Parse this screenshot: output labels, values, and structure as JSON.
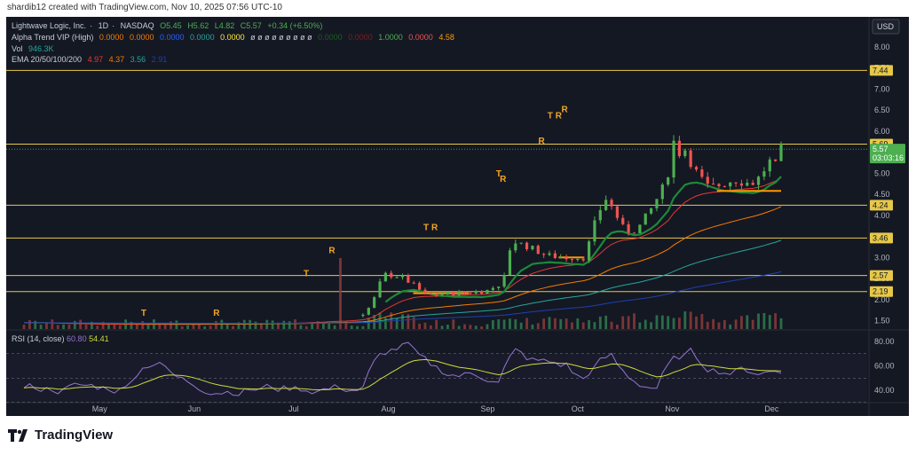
{
  "caption": "shardib12 created with TradingView.com, Nov 10, 2025 07:56 UTC-10",
  "symbol": {
    "name": "Lightwave Logic, Inc.",
    "interval": "1D",
    "exchange": "NASDAQ",
    "open": "O5.45",
    "high": "H5.62",
    "low": "L4.82",
    "close": "C5.57",
    "change": "+0.34 (+6.50%)"
  },
  "indicators": {
    "alpha_trend": {
      "label": "Alpha Trend VIP (High)",
      "values": [
        "0.0000",
        "0.0000",
        "0.0000",
        "0.0000",
        "0.0000",
        "ø ø ø ø ø ø ø ø ø",
        "0.0000",
        "0.0000",
        "1.0000",
        "0.0000",
        "4.58"
      ]
    },
    "vol": {
      "label": "Vol",
      "value": "946.3K"
    },
    "ema": {
      "label": "EMA 20/50/100/200",
      "values": [
        "4.97",
        "4.37",
        "3.56",
        "2.91"
      ]
    },
    "rsi": {
      "label": "RSI (14, close)",
      "values": [
        "60.80",
        "54.41"
      ]
    }
  },
  "currency": "USD",
  "price_tag": {
    "price": "5.57",
    "countdown": "03:03:16"
  },
  "brand": "TradingView",
  "colors": {
    "background": "#141823",
    "bull": "#4caf50",
    "bear": "#ef5350",
    "ema20": "#e53935",
    "ema50": "#f57c00",
    "ema100": "#26a69a",
    "ema200": "#1e40af",
    "level": "#e6c84a",
    "rsi": "#9575cd",
    "rsi_ma": "#cddc39"
  },
  "chart_data": {
    "type": "candlestick",
    "x_labels": [
      "May",
      "Jun",
      "Jul",
      "Aug",
      "Sep",
      "Oct",
      "Nov",
      "Dec"
    ],
    "y_ticks": [
      1.5,
      2.0,
      2.5,
      3.0,
      3.5,
      4.0,
      4.5,
      5.0,
      5.5,
      6.0,
      6.5,
      7.0,
      7.5,
      8.0
    ],
    "ylim": [
      1.3,
      8.5
    ],
    "horizontal_levels": [
      "7.44",
      "5.69",
      "4.24",
      "3.46",
      "2.57",
      "2.19"
    ],
    "signals": [
      {
        "text": "T",
        "x_frac": 0.14,
        "y": 1.62
      },
      {
        "text": "R",
        "x_frac": 0.225,
        "y": 1.62
      },
      {
        "text": "T",
        "x_frac": 0.33,
        "y": 2.55
      },
      {
        "text": "R",
        "x_frac": 0.36,
        "y": 3.1
      },
      {
        "text": "T",
        "x_frac": 0.47,
        "y": 3.65
      },
      {
        "text": "R",
        "x_frac": 0.48,
        "y": 3.65
      },
      {
        "text": "T",
        "x_frac": 0.555,
        "y": 4.92
      },
      {
        "text": "R",
        "x_frac": 0.56,
        "y": 4.8
      },
      {
        "text": "R",
        "x_frac": 0.605,
        "y": 5.7
      },
      {
        "text": "T",
        "x_frac": 0.615,
        "y": 6.3
      },
      {
        "text": "R",
        "x_frac": 0.625,
        "y": 6.3
      },
      {
        "text": "R",
        "x_frac": 0.632,
        "y": 6.45
      }
    ],
    "rsi_ticks": [
      40,
      60,
      80
    ],
    "rsi_ylim": [
      32,
      88
    ]
  }
}
